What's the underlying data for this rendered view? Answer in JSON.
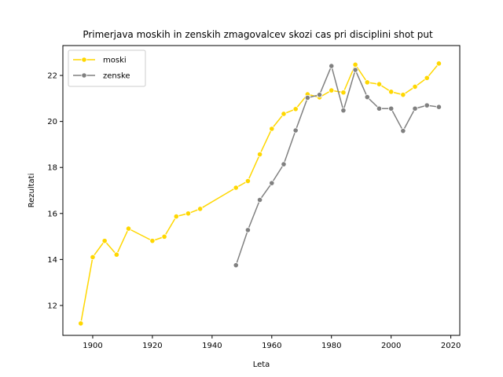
{
  "chart_data": {
    "type": "line",
    "title": "Primerjava moskih in zenskih zmagovalcev skozi cas pri disciplini shot put",
    "xlabel": "Leta",
    "ylabel": "Rezultati",
    "xlim": [
      1890,
      2023
    ],
    "ylim": [
      10.7,
      23.3
    ],
    "xticks": [
      1900,
      1920,
      1940,
      1960,
      1980,
      2000,
      2020
    ],
    "yticks": [
      12,
      14,
      16,
      18,
      20,
      22
    ],
    "grid": false,
    "legend_position": "top-left",
    "series": [
      {
        "name": "moski",
        "color": "#FFD700",
        "x": [
          1896,
          1900,
          1904,
          1908,
          1912,
          1920,
          1924,
          1928,
          1932,
          1936,
          1948,
          1952,
          1956,
          1960,
          1964,
          1968,
          1972,
          1976,
          1980,
          1984,
          1988,
          1992,
          1996,
          2000,
          2004,
          2008,
          2012,
          2016
        ],
        "y": [
          11.22,
          14.1,
          14.81,
          14.21,
          15.34,
          14.81,
          14.99,
          15.87,
          16.0,
          16.2,
          17.12,
          17.41,
          18.57,
          19.68,
          20.33,
          20.54,
          21.18,
          21.05,
          21.35,
          21.26,
          22.47,
          21.7,
          21.62,
          21.29,
          21.16,
          21.51,
          21.89,
          22.52
        ]
      },
      {
        "name": "zenske",
        "color": "#808080",
        "x": [
          1948,
          1952,
          1956,
          1960,
          1964,
          1968,
          1972,
          1976,
          1980,
          1984,
          1988,
          1992,
          1996,
          2000,
          2004,
          2008,
          2012,
          2016
        ],
        "y": [
          13.75,
          15.28,
          16.59,
          17.32,
          18.14,
          19.61,
          21.03,
          21.16,
          22.41,
          20.48,
          22.24,
          21.06,
          20.56,
          20.56,
          19.59,
          20.56,
          20.7,
          20.63
        ]
      }
    ]
  }
}
